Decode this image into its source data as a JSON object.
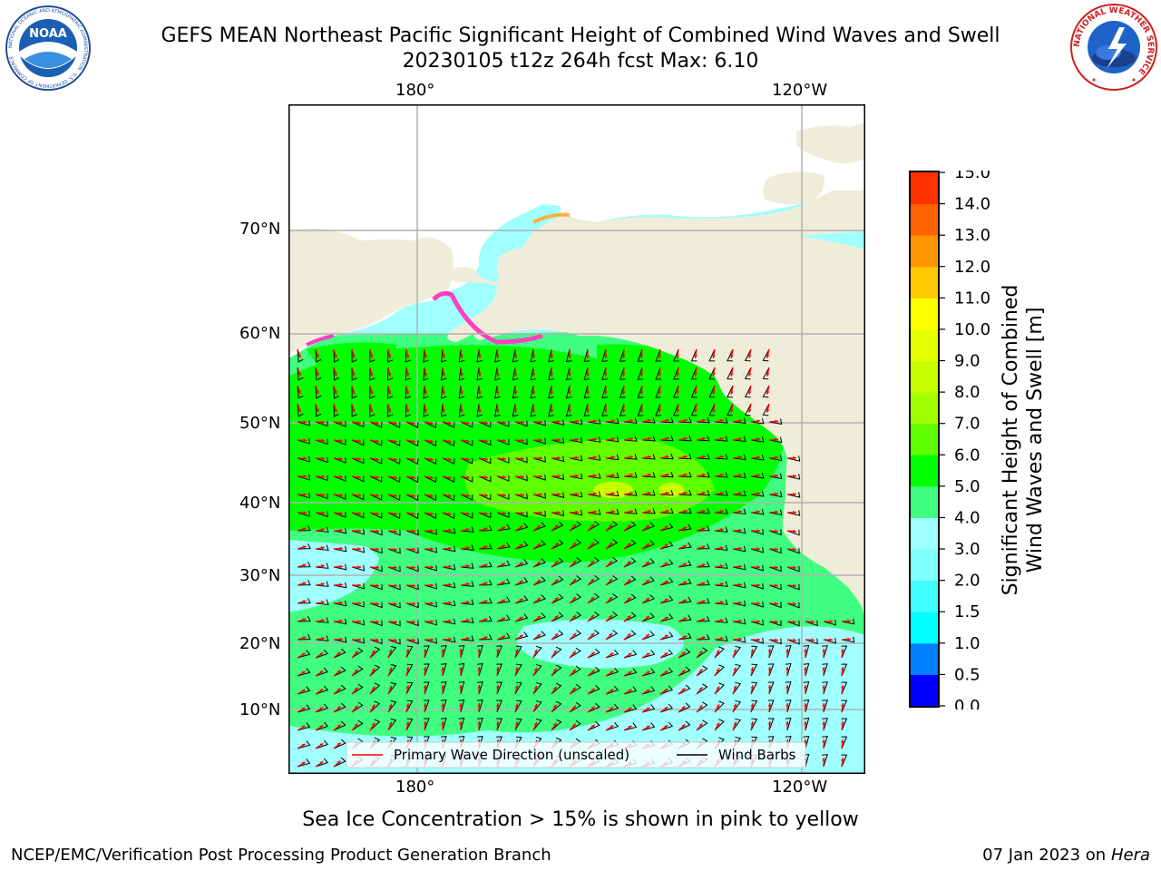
{
  "header": {
    "title_line1": "GEFS MEAN Northeast Pacific Significant Height of Combined Wind Waves and Swell",
    "title_line2": "20230105 t12z 264h fcst   Max: 6.10"
  },
  "logos": {
    "noaa": {
      "text": "NOAA",
      "ring_text": "NATIONAL OCEANIC AND ATMOSPHERIC ADMINISTRATION · U.S. DEPARTMENT OF COMMERCE"
    },
    "nws": {
      "ring_text": "NATIONAL WEATHER SERVICE"
    }
  },
  "map": {
    "top_lon_ticks": [
      "180°",
      "120°W"
    ],
    "bottom_lon_ticks": [
      "180°",
      "120°W"
    ],
    "lat_ticks": [
      "70°N",
      "60°N",
      "50°N",
      "40°N",
      "30°N",
      "20°N",
      "10°N"
    ],
    "legend": {
      "wave_direction": "Primary Wave Direction (unscaled)",
      "wind_barbs": "Wind Barbs"
    }
  },
  "colorbar": {
    "label_line1": "Significant Height of Combined",
    "label_line2": "Wind Waves and Swell [m]",
    "ticks": [
      "0.0",
      "0.5",
      "1.0",
      "1.5",
      "2.0",
      "3.0",
      "4.0",
      "5.0",
      "6.0",
      "7.0",
      "8.0",
      "9.0",
      "10.0",
      "11.0",
      "12.0",
      "13.0",
      "14.0",
      "15.0"
    ],
    "colors": [
      "#0000ff",
      "#0080ff",
      "#00ffff",
      "#40ffff",
      "#80ffff",
      "#a0ffff",
      "#40ff80",
      "#00ff00",
      "#60ff00",
      "#a0ff00",
      "#c8ff00",
      "#e6ff00",
      "#ffff00",
      "#ffc800",
      "#ff9600",
      "#ff6400",
      "#ff3200",
      "#ff0000"
    ]
  },
  "footer": {
    "ice_note": "Sea Ice Concentration > 15% is shown in pink to yellow",
    "left": "NCEP/EMC/Verification Post Processing Product Generation Branch",
    "right_date": "07 Jan 2023 on",
    "right_machine": "Hera"
  }
}
